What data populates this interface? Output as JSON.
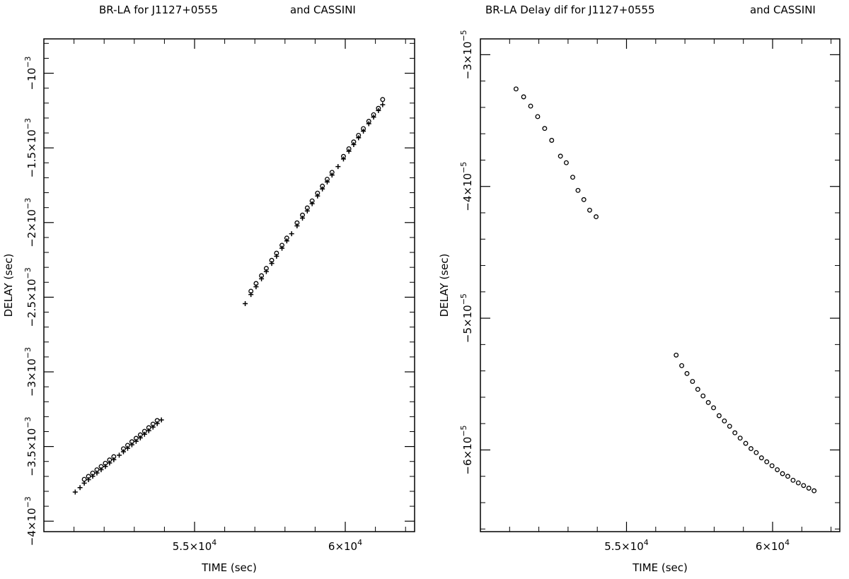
{
  "chart_data": [
    {
      "type": "scatter",
      "title_left": "BR-LA for J1127+0555",
      "title_right": "and CASSINI",
      "xlabel": "TIME (sec)",
      "ylabel": "DELAY (sec)",
      "xlim": [
        50000,
        62300
      ],
      "ylim": [
        -0.00407,
        -0.00077
      ],
      "xticks": [
        {
          "value": 55000,
          "mantissa": "5.5×10",
          "exp": "4"
        },
        {
          "value": 60000,
          "mantissa": "6×10",
          "exp": "4"
        }
      ],
      "yticks": [
        {
          "value": -0.001,
          "mantissa": "−10",
          "exp": "−3"
        },
        {
          "value": -0.0015,
          "mantissa": "−1.5×10",
          "exp": "−3"
        },
        {
          "value": -0.002,
          "mantissa": "−2×10",
          "exp": "−3"
        },
        {
          "value": -0.0025,
          "mantissa": "−2.5×10",
          "exp": "−3"
        },
        {
          "value": -0.003,
          "mantissa": "−3×10",
          "exp": "−3"
        },
        {
          "value": -0.0035,
          "mantissa": "−3.5×10",
          "exp": "−3"
        },
        {
          "value": -0.004,
          "mantissa": "−4×10",
          "exp": "−3"
        }
      ],
      "series": [
        {
          "marker": "cross",
          "x": [
            51040,
            51200,
            51340,
            51480,
            51620,
            51760,
            51900,
            52040,
            52180,
            52320,
            52500,
            52640,
            52780,
            52920,
            53060,
            53200,
            53340,
            53480,
            53620,
            53760,
            53900,
            56680,
            56870,
            57040,
            57220,
            57380,
            57560,
            57720,
            57900,
            58060,
            58220,
            58400,
            58580,
            58740,
            58900,
            59080,
            59240,
            59400,
            59560,
            59760,
            59940,
            60120,
            60280,
            60440,
            60600,
            60780,
            60940,
            61100,
            61240
          ],
          "y": [
            -0.003805,
            -0.003775,
            -0.003745,
            -0.003722,
            -0.003699,
            -0.003677,
            -0.003655,
            -0.003633,
            -0.00361,
            -0.003588,
            -0.003558,
            -0.003535,
            -0.003512,
            -0.003488,
            -0.003465,
            -0.003442,
            -0.003418,
            -0.003394,
            -0.00337,
            -0.003346,
            -0.003322,
            -0.002543,
            -0.002482,
            -0.00243,
            -0.002377,
            -0.002328,
            -0.002274,
            -0.002226,
            -0.002172,
            -0.002123,
            -0.002075,
            -0.002022,
            -0.00197,
            -0.001922,
            -0.001874,
            -0.001822,
            -0.001775,
            -0.001728,
            -0.001682,
            -0.001625,
            -0.001574,
            -0.001523,
            -0.001478,
            -0.001432,
            -0.001388,
            -0.001338,
            -0.001294,
            -0.00125,
            -0.001211
          ]
        },
        {
          "marker": "circle",
          "x": [
            51340,
            51480,
            51620,
            51760,
            51900,
            52040,
            52180,
            52320,
            52640,
            52780,
            52920,
            53060,
            53200,
            53340,
            53480,
            53620,
            53760,
            56870,
            57040,
            57220,
            57380,
            57560,
            57720,
            57900,
            58060,
            58400,
            58580,
            58740,
            58900,
            59080,
            59240,
            59400,
            59560,
            59940,
            60120,
            60280,
            60440,
            60600,
            60780,
            60940,
            61100,
            61240
          ],
          "y": [
            -0.00372,
            -0.0037,
            -0.003678,
            -0.003656,
            -0.003634,
            -0.003612,
            -0.00359,
            -0.003568,
            -0.003515,
            -0.003492,
            -0.003468,
            -0.003445,
            -0.003422,
            -0.003398,
            -0.003374,
            -0.00335,
            -0.003326,
            -0.00246,
            -0.002408,
            -0.002356,
            -0.002307,
            -0.002253,
            -0.002205,
            -0.002152,
            -0.002104,
            -0.002002,
            -0.00195,
            -0.001902,
            -0.001855,
            -0.001803,
            -0.001756,
            -0.00171,
            -0.001664,
            -0.001557,
            -0.001506,
            -0.00146,
            -0.001416,
            -0.001371,
            -0.001322,
            -0.001278,
            -0.001235,
            -0.001176
          ]
        }
      ]
    },
    {
      "type": "scatter",
      "title_left": "BR-LA Delay dif for J1127+0555",
      "title_right": "and CASSINI",
      "xlabel": "TIME (sec)",
      "ylabel": "DELAY (sec)",
      "xlim": [
        50000,
        62300
      ],
      "ylim": [
        -6.62e-05,
        -2.88e-05
      ],
      "xticks": [
        {
          "value": 55000,
          "mantissa": "5.5×10",
          "exp": "4"
        },
        {
          "value": 60000,
          "mantissa": "6×10",
          "exp": "4"
        }
      ],
      "yticks": [
        {
          "value": -3e-05,
          "mantissa": "−3×10",
          "exp": "−5"
        },
        {
          "value": -4e-05,
          "mantissa": "−4×10",
          "exp": "−5"
        },
        {
          "value": -5e-05,
          "mantissa": "−5×10",
          "exp": "−5"
        },
        {
          "value": -6e-05,
          "mantissa": "−6×10",
          "exp": "−5"
        }
      ],
      "series": [
        {
          "marker": "circle",
          "x": [
            51220,
            51480,
            51720,
            51960,
            52200,
            52440,
            52740,
            52940,
            53160,
            53340,
            53540,
            53740,
            53960,
            56700,
            56890,
            57070,
            57260,
            57440,
            57620,
            57800,
            57980,
            58170,
            58350,
            58530,
            58710,
            58890,
            59080,
            59260,
            59440,
            59620,
            59800,
            59980,
            60160,
            60340,
            60520,
            60700,
            60880,
            61060,
            61240,
            61420
          ],
          "y": [
            -3.26e-05,
            -3.32e-05,
            -3.39e-05,
            -3.47e-05,
            -3.56e-05,
            -3.65e-05,
            -3.77e-05,
            -3.82e-05,
            -3.93e-05,
            -4.03e-05,
            -4.1e-05,
            -4.18e-05,
            -4.23e-05,
            -5.28e-05,
            -5.36e-05,
            -5.42e-05,
            -5.48e-05,
            -5.54e-05,
            -5.59e-05,
            -5.64e-05,
            -5.68e-05,
            -5.74e-05,
            -5.78e-05,
            -5.82e-05,
            -5.87e-05,
            -5.91e-05,
            -5.95e-05,
            -5.99e-05,
            -6.02e-05,
            -6.06e-05,
            -6.09e-05,
            -6.12e-05,
            -6.15e-05,
            -6.18e-05,
            -6.2e-05,
            -6.23e-05,
            -6.25e-05,
            -6.27e-05,
            -6.29e-05,
            -6.31e-05
          ]
        }
      ]
    }
  ]
}
